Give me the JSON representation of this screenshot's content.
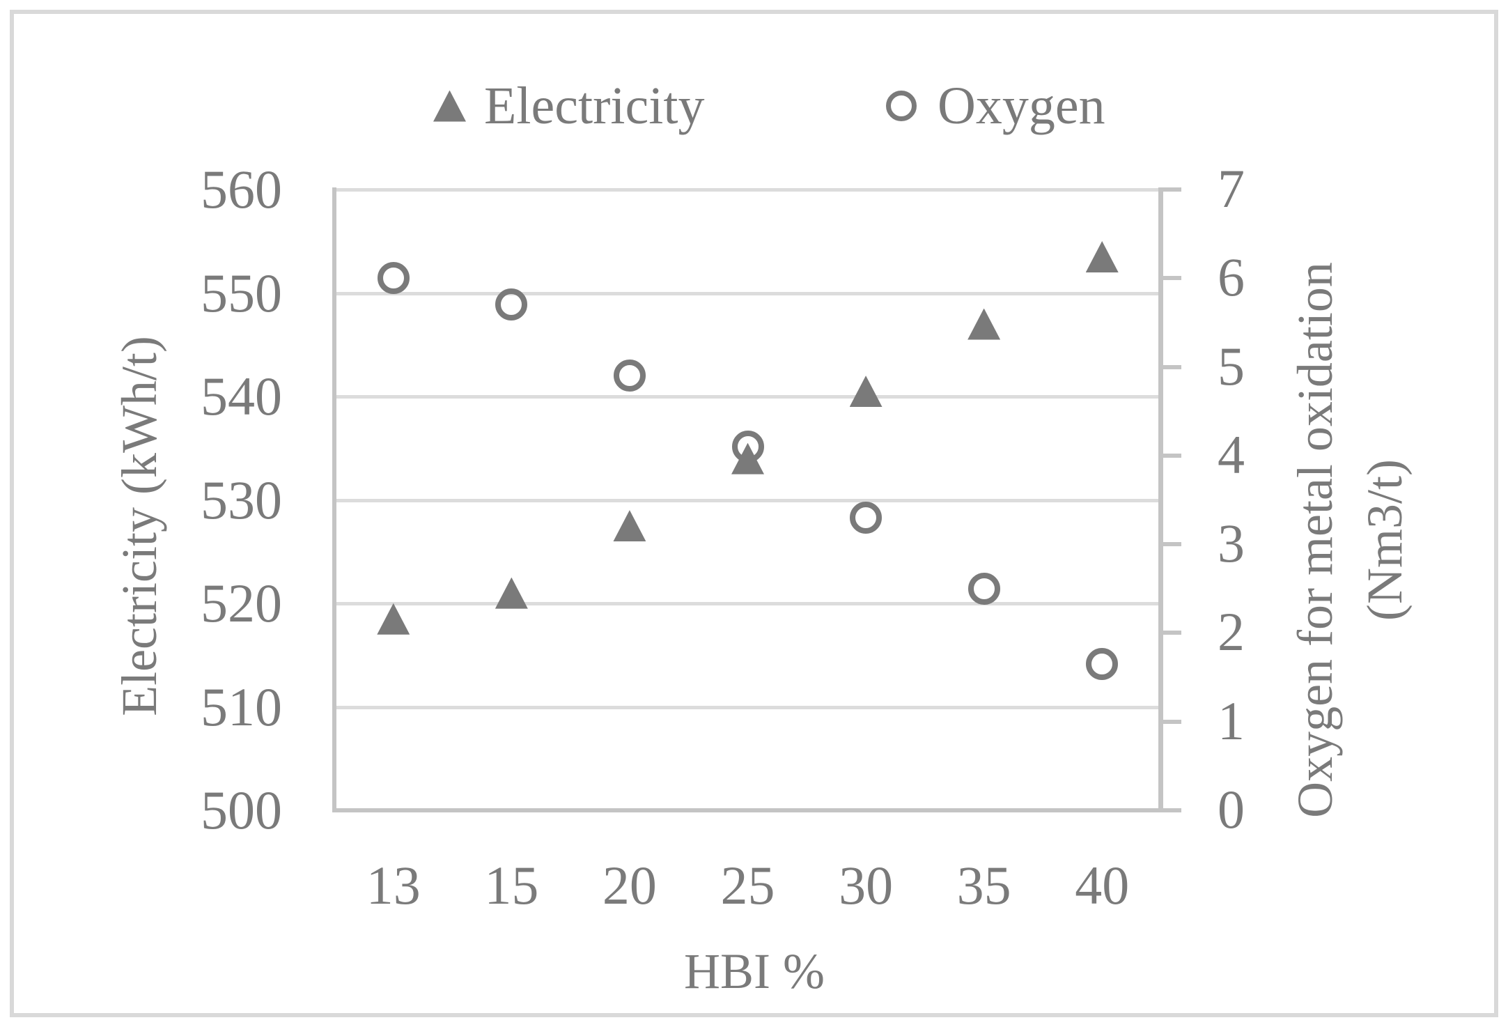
{
  "figure": {
    "background": "#ffffff",
    "border_color": "#d9d9d9",
    "text_color": "#7a7a7a",
    "marker_color": "#7a7a7a",
    "gridline_color": "#dcdcdc",
    "axis_line_color": "#c4c4c4"
  },
  "legend": {
    "items": [
      {
        "icon": "triangle-marker-icon",
        "label": "Electricity"
      },
      {
        "icon": "circle-marker-icon",
        "label": "Oxygen"
      }
    ]
  },
  "chart_data": {
    "type": "scatter",
    "title": "",
    "categories": [
      "13",
      "15",
      "20",
      "25",
      "30",
      "35",
      "40"
    ],
    "x_axis": {
      "title": "HBI %"
    },
    "y_axis_left": {
      "title": "Electricity (kWh/t)",
      "min": 500,
      "max": 560,
      "tick_step": 10,
      "tick_labels": [
        "560",
        "550",
        "540",
        "530",
        "520",
        "510",
        "500"
      ]
    },
    "y_axis_right": {
      "title_lines": [
        "Oxygen for metal oxidation",
        "(Nm3/t)"
      ],
      "min": 0,
      "max": 7,
      "tick_step": 1,
      "tick_labels": [
        "7",
        "6",
        "5",
        "4",
        "3",
        "2",
        "1",
        "0"
      ]
    },
    "series": [
      {
        "name": "Electricity",
        "marker": "triangle",
        "axis": "left",
        "values": [
          518.5,
          521,
          527.5,
          534,
          540.5,
          547,
          553.5
        ]
      },
      {
        "name": "Oxygen",
        "marker": "circle",
        "axis": "right",
        "values": [
          6.0,
          5.7,
          4.9,
          4.1,
          3.3,
          2.5,
          1.65
        ]
      }
    ],
    "legend_position": "top",
    "grid": "horizontal"
  }
}
